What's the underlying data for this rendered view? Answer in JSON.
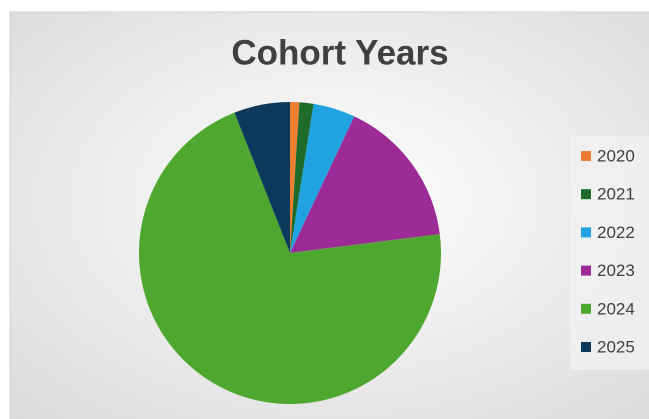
{
  "chart_data": {
    "type": "pie",
    "title": "Cohort Years",
    "categories": [
      "2020",
      "2021",
      "2022",
      "2023",
      "2024",
      "2025"
    ],
    "values": [
      1,
      1.5,
      4.5,
      16,
      71,
      6
    ],
    "colors": [
      "#ed7d31",
      "#1e6b2a",
      "#20a3e0",
      "#9c2b97",
      "#4ea72e",
      "#0d3a5c"
    ],
    "legend": "right"
  }
}
